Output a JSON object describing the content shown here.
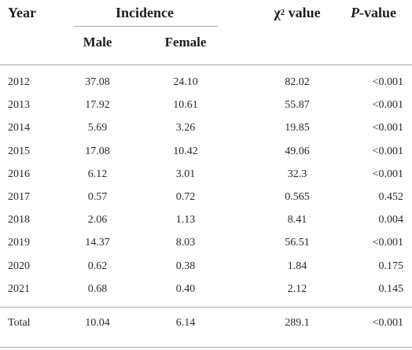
{
  "table": {
    "header": {
      "year": "Year",
      "incidence": "Incidence",
      "chi_symbol": "χ",
      "chi_sup": "2",
      "chi_rest": " value",
      "p_italic": "P",
      "p_rest": "-value"
    },
    "subheader": {
      "male": "Male",
      "female": "Female"
    },
    "rows": [
      [
        "2012",
        "37.08",
        "24.10",
        "82.02",
        "<0.001"
      ],
      [
        "2013",
        "17.92",
        "10.61",
        "55.87",
        "<0.001"
      ],
      [
        "2014",
        "5.69",
        "3.26",
        "19.85",
        "<0.001"
      ],
      [
        "2015",
        "17.08",
        "10.42",
        "49.06",
        "<0.001"
      ],
      [
        "2016",
        "6.12",
        "3.01",
        "32.3",
        "<0.001"
      ],
      [
        "2017",
        "0.57",
        "0.72",
        "0.565",
        "0.452"
      ],
      [
        "2018",
        "2.06",
        "1.13",
        "8.41",
        "0.004"
      ],
      [
        "2019",
        "14.37",
        "8.03",
        "56.51",
        "<0.001"
      ],
      [
        "2020",
        "0.62",
        "0.38",
        "1.84",
        "0.175"
      ],
      [
        "2021",
        "0.68",
        "0.40",
        "2.12",
        "0.145"
      ]
    ],
    "total": [
      "Total",
      "10.04",
      "6.14",
      "289.1",
      "<0.001"
    ]
  }
}
